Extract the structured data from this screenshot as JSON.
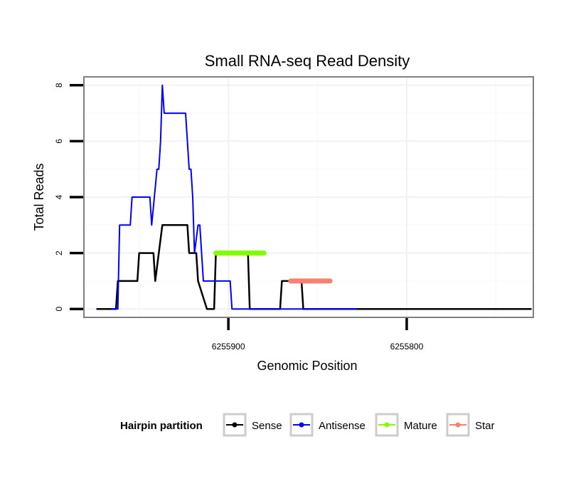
{
  "chart_data": {
    "type": "line",
    "title": "Small RNA-seq Read Density",
    "xlabel": "Genomic Position",
    "ylabel": "Total Reads",
    "xlim": [
      6255981,
      6255729
    ],
    "ylim": [
      -0.3,
      8.3
    ],
    "x_ticks": [
      6255900,
      6255800
    ],
    "x_tick_labels": [
      "6255900",
      "6255800"
    ],
    "y_ticks": [
      0,
      2,
      4,
      6,
      8
    ],
    "y_tick_labels": [
      "0",
      "2",
      "4",
      "6",
      "8"
    ],
    "grid": true,
    "legend": {
      "title": "Hairpin partition",
      "position": "bottom",
      "entries": [
        {
          "label": "Sense",
          "color": "#000000"
        },
        {
          "label": "Antisense",
          "color": "#0000ff"
        },
        {
          "label": "Mature",
          "color": "#7fff00"
        },
        {
          "label": "Star",
          "color": "#fa8072"
        }
      ]
    },
    "series": [
      {
        "name": "Sense",
        "color": "#000000",
        "width": 2.5,
        "x": [
          6255974,
          6255963,
          6255962,
          6255961,
          6255951,
          6255950,
          6255942,
          6255941,
          6255937,
          6255936,
          6255932,
          6255931,
          6255923,
          6255922,
          6255918,
          6255917,
          6255912,
          6255908,
          6255907,
          6255906,
          6255889,
          6255888,
          6255871,
          6255870,
          6255859,
          6255858,
          6255827,
          6255730
        ],
        "y": [
          0,
          0,
          1,
          1,
          1,
          2,
          2,
          1,
          3,
          3,
          3,
          3,
          3,
          2,
          2,
          1,
          0,
          0,
          2,
          2,
          2,
          0,
          0,
          1,
          1,
          0,
          0,
          0
        ]
      },
      {
        "name": "Antisense",
        "color": "#0000ff",
        "width": 2,
        "x": [
          6255966,
          6255962,
          6255961,
          6255955,
          6255954,
          6255944,
          6255943,
          6255940,
          6255939,
          6255938,
          6255937,
          6255936,
          6255935,
          6255925,
          6255924,
          6255922,
          6255921,
          6255920,
          6255919,
          6255917,
          6255916,
          6255915,
          6255914,
          6255900,
          6255899,
          6255898,
          6255897,
          6255880,
          6255879,
          6255828
        ],
        "y": [
          0,
          0,
          3,
          3,
          4,
          4,
          3,
          5,
          5,
          6,
          8,
          7,
          7,
          7,
          7,
          5,
          5,
          4,
          2,
          3,
          3,
          2,
          1,
          1,
          1,
          0,
          0,
          0,
          0,
          0
        ]
      },
      {
        "name": "Mature",
        "color": "#7fff00",
        "width": 7,
        "x": [
          6255907,
          6255880
        ],
        "y": [
          2,
          2
        ]
      },
      {
        "name": "Star",
        "color": "#fa8072",
        "width": 7,
        "x": [
          6255865,
          6255843
        ],
        "y": [
          1,
          1
        ]
      }
    ]
  }
}
